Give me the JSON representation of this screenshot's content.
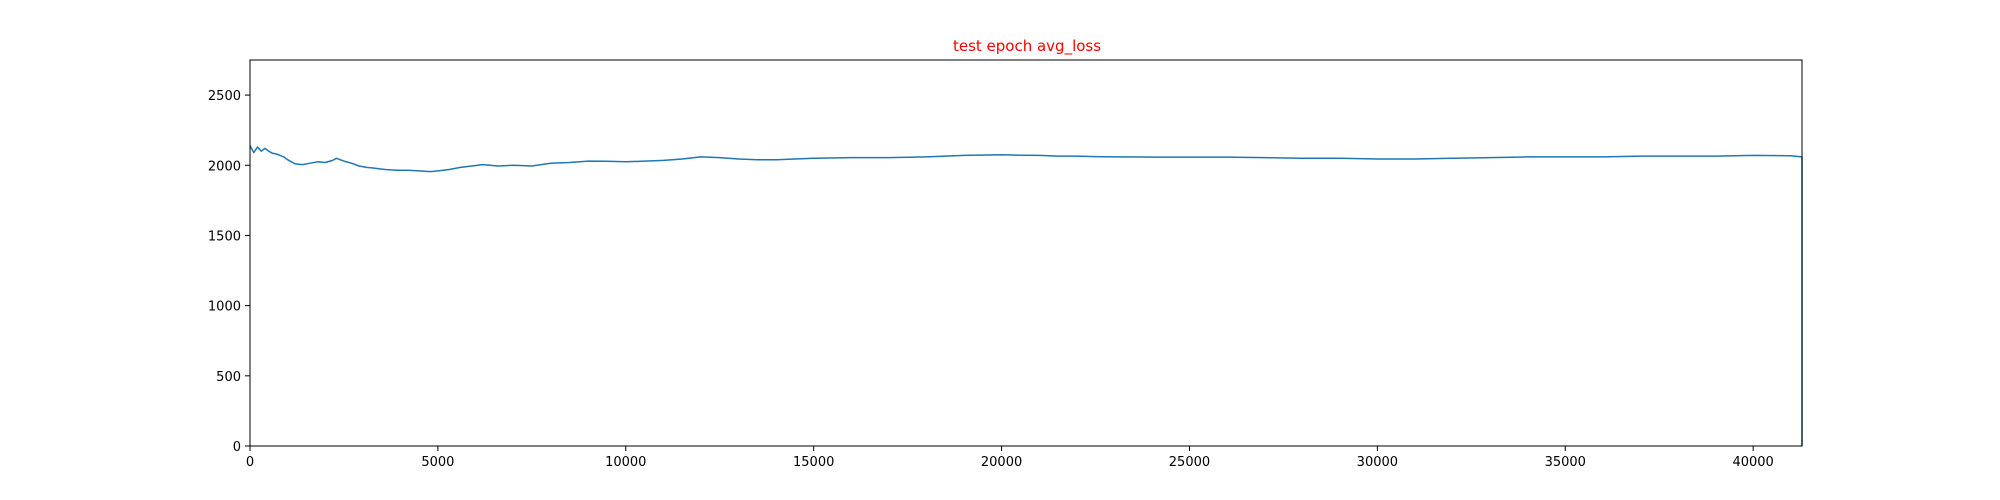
{
  "chart_data": {
    "type": "line",
    "title": "test epoch avg_loss",
    "xlabel": "",
    "ylabel": "",
    "xlim": [
      0,
      41300
    ],
    "ylim": [
      0,
      2750
    ],
    "xticks": [
      0,
      5000,
      10000,
      15000,
      20000,
      25000,
      30000,
      35000,
      40000
    ],
    "yticks": [
      0,
      500,
      1000,
      1500,
      2000,
      2500
    ],
    "grid": false,
    "legend": false,
    "title_color": "#ff0000",
    "series": [
      {
        "color": "#1f77b4",
        "x": [
          0,
          100,
          200,
          300,
          400,
          500,
          600,
          700,
          800,
          900,
          1000,
          1200,
          1400,
          1600,
          1800,
          2000,
          2200,
          2300,
          2500,
          2700,
          2900,
          3100,
          3300,
          3600,
          3900,
          4200,
          4500,
          4800,
          5000,
          5300,
          5600,
          5900,
          6200,
          6600,
          7000,
          7500,
          8000,
          8500,
          9000,
          9500,
          10000,
          10500,
          11000,
          11500,
          12000,
          12500,
          13000,
          13500,
          14000,
          14500,
          15000,
          16000,
          17000,
          18000,
          19000,
          20000,
          20500,
          21000,
          21500,
          22000,
          22500,
          23000,
          24000,
          25000,
          26000,
          27000,
          28000,
          29000,
          30000,
          31000,
          32000,
          33000,
          34000,
          35000,
          36000,
          37000,
          38000,
          39000,
          40000,
          41000,
          41300,
          41300
        ],
        "y": [
          2140,
          2090,
          2130,
          2100,
          2120,
          2100,
          2085,
          2080,
          2070,
          2060,
          2040,
          2010,
          2005,
          2015,
          2025,
          2020,
          2035,
          2050,
          2030,
          2015,
          1995,
          1985,
          1980,
          1970,
          1965,
          1965,
          1960,
          1955,
          1960,
          1970,
          1985,
          1995,
          2005,
          1995,
          2000,
          1995,
          2015,
          2020,
          2030,
          2028,
          2025,
          2030,
          2035,
          2045,
          2060,
          2055,
          2045,
          2040,
          2040,
          2045,
          2050,
          2055,
          2055,
          2060,
          2070,
          2075,
          2072,
          2070,
          2065,
          2065,
          2062,
          2060,
          2058,
          2058,
          2058,
          2055,
          2050,
          2050,
          2045,
          2045,
          2050,
          2055,
          2060,
          2060,
          2060,
          2065,
          2065,
          2065,
          2070,
          2068,
          2060,
          0
        ]
      }
    ]
  }
}
